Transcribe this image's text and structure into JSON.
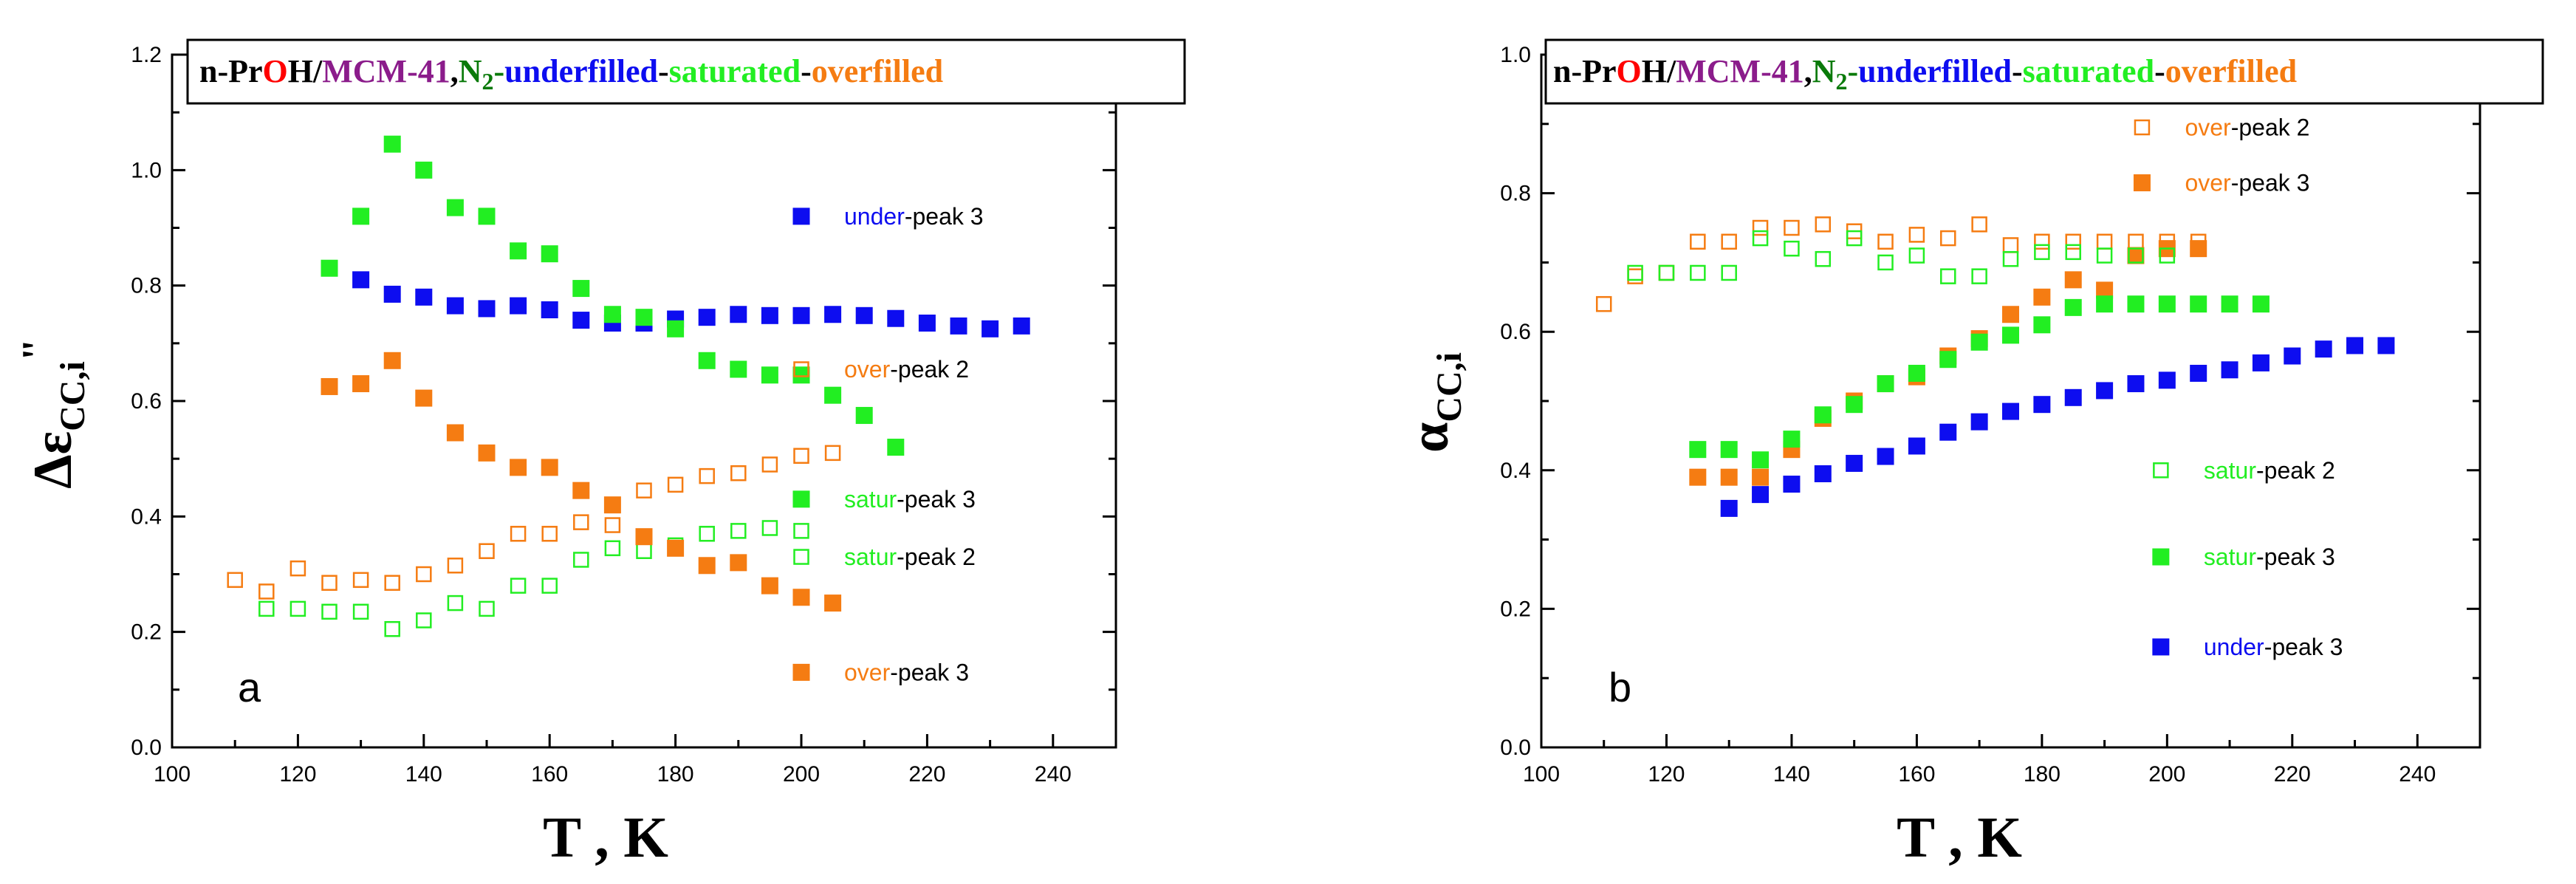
{
  "colors": {
    "blue": "#0d0df0",
    "green": "#22ee22",
    "orange": "#f57c12",
    "red": "#ff0000",
    "purple": "#8b1c8b",
    "dkgreen": "#0a7a0a",
    "black": "#000000"
  },
  "title": {
    "compound": "n-Pr",
    "o": "O",
    "h": "H",
    "slash": "/",
    "host": "MCM-41",
    "comma": ",",
    "n": "N",
    "n_sub": "2",
    "dash1": "-",
    "under": "underfilled",
    "dash2": "-",
    "sat": "saturated",
    "dash3": "-",
    "over": "overfilled"
  },
  "chart_data": [
    {
      "type": "scatter",
      "panel_label": "a",
      "xlabel": "T , K",
      "ylabel_main": "Δε",
      "ylabel_sub": "CC,i",
      "ylabel_sup": "\"",
      "xlim": [
        100,
        250
      ],
      "ylim": [
        0.0,
        1.2
      ],
      "xticks": [
        100,
        120,
        140,
        160,
        180,
        200,
        220,
        240
      ],
      "xtick_labels": [
        "100",
        "120",
        "140",
        "160",
        "180",
        "200",
        "220",
        "240"
      ],
      "yticks": [
        0.0,
        0.2,
        0.4,
        0.6,
        0.8,
        1.0,
        1.2
      ],
      "ytick_labels": [
        "0.0",
        "0.2",
        "0.4",
        "0.6",
        "0.8",
        "1.0",
        "1.2"
      ],
      "series": [
        {
          "name": "under-peak 3",
          "prefix": "under",
          "suffix": "-peak 3",
          "color": "blue",
          "filled": true,
          "x": [
            130,
            135,
            140,
            145,
            150,
            155,
            160,
            165,
            170,
            175,
            180,
            185,
            190,
            195,
            200,
            205,
            210,
            215,
            220,
            225,
            230,
            235
          ],
          "y": [
            0.81,
            0.785,
            0.78,
            0.765,
            0.76,
            0.765,
            0.758,
            0.74,
            0.735,
            0.735,
            0.742,
            0.745,
            0.75,
            0.748,
            0.748,
            0.75,
            0.748,
            0.743,
            0.735,
            0.73,
            0.725,
            0.73
          ]
        },
        {
          "name": "satur-peak 3",
          "prefix": "satur",
          "suffix": "-peak 3",
          "color": "green",
          "filled": true,
          "x": [
            125,
            130,
            135,
            140,
            145,
            150,
            155,
            160,
            165,
            170,
            175,
            180,
            185,
            190,
            195,
            200,
            205,
            210,
            215
          ],
          "y": [
            0.83,
            0.92,
            1.045,
            1.0,
            0.935,
            0.92,
            0.86,
            0.855,
            0.795,
            0.75,
            0.745,
            0.725,
            0.67,
            0.655,
            0.645,
            0.645,
            0.61,
            0.575,
            0.52
          ]
        },
        {
          "name": "satur-peak 2",
          "prefix": "satur",
          "suffix": "-peak 2",
          "color": "green",
          "filled": false,
          "x": [
            115,
            120,
            125,
            130,
            135,
            140,
            145,
            150,
            155,
            160,
            165,
            170,
            175,
            180,
            185,
            190,
            195,
            200
          ],
          "y": [
            0.24,
            0.24,
            0.235,
            0.235,
            0.205,
            0.22,
            0.25,
            0.24,
            0.28,
            0.28,
            0.325,
            0.345,
            0.34,
            0.35,
            0.37,
            0.375,
            0.38,
            0.375
          ]
        },
        {
          "name": "over-peak 2",
          "prefix": "over",
          "suffix": "-peak 2",
          "color": "orange",
          "filled": false,
          "x": [
            110,
            115,
            120,
            125,
            130,
            135,
            140,
            145,
            150,
            155,
            160,
            165,
            170,
            175,
            180,
            185,
            190,
            195,
            200,
            205
          ],
          "y": [
            0.29,
            0.27,
            0.31,
            0.285,
            0.29,
            0.285,
            0.3,
            0.315,
            0.34,
            0.37,
            0.37,
            0.39,
            0.385,
            0.445,
            0.455,
            0.47,
            0.475,
            0.49,
            0.505,
            0.51
          ]
        },
        {
          "name": "over-peak 3",
          "prefix": "over",
          "suffix": "-peak 3",
          "color": "orange",
          "filled": true,
          "x": [
            125,
            130,
            135,
            140,
            145,
            150,
            155,
            160,
            165,
            170,
            175,
            180,
            185,
            190,
            195,
            200,
            205
          ],
          "y": [
            0.625,
            0.63,
            0.67,
            0.605,
            0.545,
            0.51,
            0.485,
            0.485,
            0.445,
            0.42,
            0.365,
            0.345,
            0.315,
            0.32,
            0.28,
            0.26,
            0.25
          ]
        }
      ],
      "legend": [
        {
          "series": 0,
          "prefix": "under",
          "suffix": "-peak 3",
          "color": "blue",
          "filled": true,
          "lx": 200,
          "ly": 0.92
        },
        {
          "series": 3,
          "prefix": "over",
          "suffix": "-peak 2",
          "color": "orange",
          "filled": false,
          "lx": 200,
          "ly": 0.655
        },
        {
          "series": 1,
          "prefix": "satur",
          "suffix": "-peak 3",
          "color": "green",
          "filled": true,
          "lx": 200,
          "ly": 0.43
        },
        {
          "series": 2,
          "prefix": "satur",
          "suffix": "-peak 2",
          "color": "green",
          "filled": false,
          "lx": 200,
          "ly": 0.33
        },
        {
          "series": 4,
          "prefix": "over",
          "suffix": "-peak 3",
          "color": "orange",
          "filled": true,
          "lx": 200,
          "ly": 0.13
        }
      ]
    },
    {
      "type": "scatter",
      "panel_label": "b",
      "xlabel": "T , K",
      "ylabel_main": "α",
      "ylabel_sub": "CC,i",
      "ylabel_sup": "",
      "xlim": [
        100,
        250
      ],
      "ylim": [
        0.0,
        1.0
      ],
      "xticks": [
        100,
        120,
        140,
        160,
        180,
        200,
        220,
        240
      ],
      "xtick_labels": [
        "100",
        "120",
        "140",
        "160",
        "180",
        "200",
        "220",
        "240"
      ],
      "yticks": [
        0.0,
        0.2,
        0.4,
        0.6,
        0.8,
        1.0
      ],
      "ytick_labels": [
        "0.0",
        "0.2",
        "0.4",
        "0.6",
        "0.8",
        "1.0"
      ],
      "series": [
        {
          "name": "over-peak 2",
          "prefix": "over",
          "suffix": "-peak 2",
          "color": "orange",
          "filled": false,
          "x": [
            110,
            115,
            120,
            125,
            130,
            135,
            140,
            145,
            150,
            155,
            160,
            165,
            170,
            175,
            180,
            185,
            190,
            195,
            200,
            205
          ],
          "y": [
            0.64,
            0.68,
            0.685,
            0.73,
            0.73,
            0.75,
            0.75,
            0.755,
            0.745,
            0.73,
            0.74,
            0.735,
            0.755,
            0.725,
            0.73,
            0.73,
            0.73,
            0.73,
            0.73,
            0.73
          ]
        },
        {
          "name": "over-peak 3",
          "prefix": "over",
          "suffix": "-peak 3",
          "color": "orange",
          "filled": true,
          "x": [
            125,
            130,
            135,
            140,
            145,
            150,
            155,
            160,
            165,
            170,
            175,
            180,
            185,
            190,
            195,
            200,
            205
          ],
          "y": [
            0.39,
            0.39,
            0.39,
            0.43,
            0.475,
            0.5,
            0.525,
            0.535,
            0.565,
            0.59,
            0.625,
            0.65,
            0.675,
            0.66,
            0.71,
            0.72,
            0.72
          ]
        },
        {
          "name": "satur-peak 2",
          "prefix": "satur",
          "suffix": "-peak 2",
          "color": "green",
          "filled": false,
          "x": [
            115,
            120,
            125,
            130,
            135,
            140,
            145,
            150,
            155,
            160,
            165,
            170,
            175,
            180,
            185,
            190,
            195,
            200
          ],
          "y": [
            0.685,
            0.685,
            0.685,
            0.685,
            0.735,
            0.72,
            0.705,
            0.735,
            0.7,
            0.71,
            0.68,
            0.68,
            0.705,
            0.715,
            0.715,
            0.71,
            0.71,
            0.71
          ]
        },
        {
          "name": "satur-peak 3",
          "prefix": "satur",
          "suffix": "-peak 3",
          "color": "green",
          "filled": true,
          "x": [
            125,
            130,
            135,
            140,
            145,
            150,
            155,
            160,
            165,
            170,
            175,
            180,
            185,
            190,
            195,
            200,
            205,
            210,
            215
          ],
          "y": [
            0.43,
            0.43,
            0.415,
            0.445,
            0.48,
            0.495,
            0.525,
            0.54,
            0.56,
            0.585,
            0.595,
            0.61,
            0.635,
            0.64,
            0.64,
            0.64,
            0.64,
            0.64,
            0.64
          ]
        },
        {
          "name": "under-peak 3",
          "prefix": "under",
          "suffix": "-peak 3",
          "color": "blue",
          "filled": true,
          "x": [
            130,
            135,
            140,
            145,
            150,
            155,
            160,
            165,
            170,
            175,
            180,
            185,
            190,
            195,
            200,
            205,
            210,
            215,
            220,
            225,
            230,
            235
          ],
          "y": [
            0.345,
            0.365,
            0.38,
            0.395,
            0.41,
            0.42,
            0.435,
            0.455,
            0.47,
            0.485,
            0.495,
            0.505,
            0.515,
            0.525,
            0.53,
            0.54,
            0.545,
            0.555,
            0.565,
            0.575,
            0.58,
            0.58
          ]
        }
      ],
      "legend": [
        {
          "series": 0,
          "prefix": "over",
          "suffix": "-peak 2",
          "color": "orange",
          "filled": false,
          "lx": 196,
          "ly": 0.895
        },
        {
          "series": 1,
          "prefix": "over",
          "suffix": "-peak 3",
          "color": "orange",
          "filled": true,
          "lx": 196,
          "ly": 0.815
        },
        {
          "series": 2,
          "prefix": "satur",
          "suffix": "-peak 2",
          "color": "green",
          "filled": false,
          "lx": 199,
          "ly": 0.4
        },
        {
          "series": 3,
          "prefix": "satur",
          "suffix": "-peak 3",
          "color": "green",
          "filled": true,
          "lx": 199,
          "ly": 0.275
        },
        {
          "series": 4,
          "prefix": "under",
          "suffix": "-peak 3",
          "color": "blue",
          "filled": true,
          "lx": 199,
          "ly": 0.145
        }
      ]
    }
  ]
}
